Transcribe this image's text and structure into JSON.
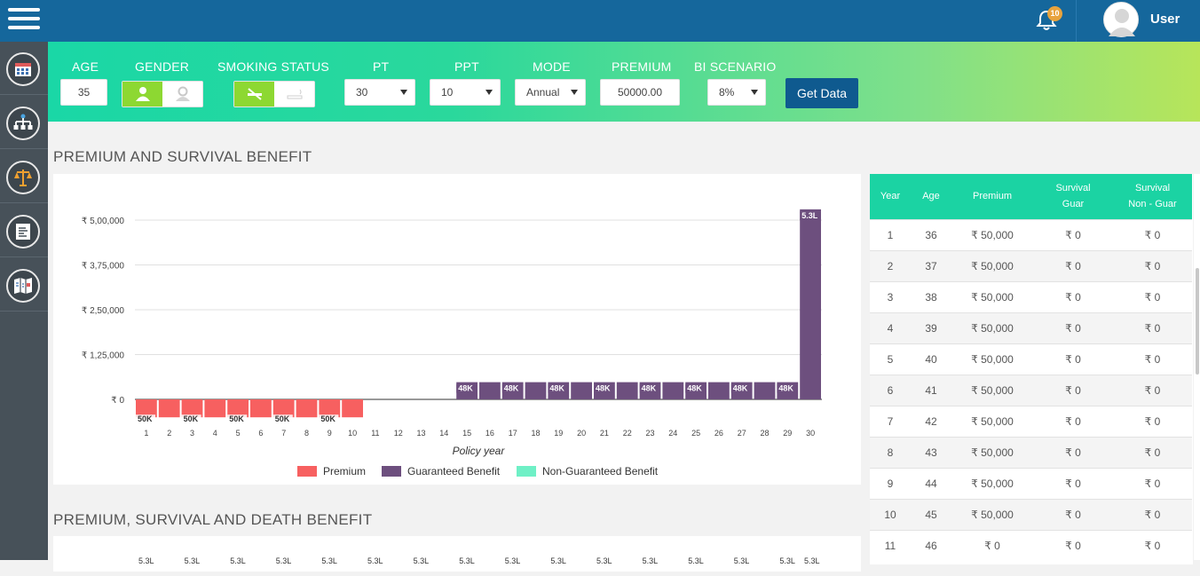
{
  "header": {
    "notification_count": "10",
    "user_name": "User"
  },
  "filters": {
    "age_label": "AGE",
    "age_value": "35",
    "gender_label": "GENDER",
    "smoking_label": "SMOKING  STATUS",
    "pt_label": "PT",
    "pt_value": "30",
    "ppt_label": "PPT",
    "ppt_value": "10",
    "mode_label": "MODE",
    "mode_value": "Annual",
    "premium_label": "PREMIUM",
    "premium_value": "50000.00",
    "bi_label": "BI  SCENARIO",
    "bi_value": "8%",
    "get_data_label": "Get Data"
  },
  "sections": {
    "chart1_title": "PREMIUM AND SURVIVAL BENEFIT",
    "chart2_title": "PREMIUM, SURVIVAL AND DEATH BENEFIT"
  },
  "chart_data": {
    "type": "bar",
    "x": [
      1,
      2,
      3,
      4,
      5,
      6,
      7,
      8,
      9,
      10,
      11,
      12,
      13,
      14,
      15,
      16,
      17,
      18,
      19,
      20,
      21,
      22,
      23,
      24,
      25,
      26,
      27,
      28,
      29,
      30
    ],
    "xlabel": "Policy year",
    "ylabel": "",
    "ylim": [
      -30000,
      530000
    ],
    "yticks": [
      {
        "value": 0,
        "label": "₹ 0"
      },
      {
        "value": 125000,
        "label": "₹ 1,25,000"
      },
      {
        "value": 250000,
        "label": "₹ 2,50,000"
      },
      {
        "value": 375000,
        "label": "₹ 3,75,000"
      },
      {
        "value": 500000,
        "label": "₹ 5,00,000"
      }
    ],
    "legend_position": "bottom",
    "series": [
      {
        "name": "Premium",
        "color": "#f76060",
        "values": [
          -50000,
          -50000,
          -50000,
          -50000,
          -50000,
          -50000,
          -50000,
          -50000,
          -50000,
          -50000,
          0,
          0,
          0,
          0,
          0,
          0,
          0,
          0,
          0,
          0,
          0,
          0,
          0,
          0,
          0,
          0,
          0,
          0,
          0,
          0
        ],
        "labels": [
          "50K",
          "",
          "50K",
          "",
          "50K",
          "",
          "50K",
          "",
          "50K",
          "",
          "",
          "",
          "",
          "",
          "",
          "",
          "",
          "",
          "",
          "",
          "",
          "",
          "",
          "",
          "",
          "",
          "",
          "",
          "",
          ""
        ]
      },
      {
        "name": "Guaranteed Benefit",
        "color": "#6d4f7e",
        "values": [
          0,
          0,
          0,
          0,
          0,
          0,
          0,
          0,
          0,
          0,
          0,
          0,
          0,
          0,
          48000,
          48000,
          48000,
          48000,
          48000,
          48000,
          48000,
          48000,
          48000,
          48000,
          48000,
          48000,
          48000,
          48000,
          48000,
          530000
        ],
        "labels": [
          "",
          "",
          "",
          "",
          "",
          "",
          "",
          "",
          "",
          "",
          "",
          "",
          "",
          "",
          "48K",
          "",
          "48K",
          "",
          "48K",
          "",
          "48K",
          "",
          "48K",
          "",
          "48K",
          "",
          "48K",
          "",
          "48K",
          "5.3L"
        ]
      },
      {
        "name": "Non-Guaranteed Benefit",
        "color": "#6ff0c6",
        "values": [
          0,
          0,
          0,
          0,
          0,
          0,
          0,
          0,
          0,
          0,
          0,
          0,
          0,
          0,
          0,
          0,
          0,
          0,
          0,
          0,
          0,
          0,
          0,
          0,
          0,
          0,
          0,
          0,
          0,
          0
        ],
        "labels": []
      }
    ]
  },
  "chart2_top_labels": [
    "5.3L",
    "5.3L",
    "5.3L",
    "5.3L",
    "5.3L",
    "5.3L",
    "5.3L",
    "5.3L",
    "5.3L",
    "5.3L",
    "5.3L",
    "5.3L",
    "5.3L",
    "5.3L",
    "5.3L",
    "5.3L"
  ],
  "table": {
    "headers": [
      "Year",
      "Age",
      "Premium",
      "Survival\nGuar",
      "Survival\nNon - Guar"
    ],
    "rows": [
      [
        "1",
        "36",
        "₹ 50,000",
        "₹ 0",
        "₹ 0"
      ],
      [
        "2",
        "37",
        "₹ 50,000",
        "₹ 0",
        "₹ 0"
      ],
      [
        "3",
        "38",
        "₹ 50,000",
        "₹ 0",
        "₹ 0"
      ],
      [
        "4",
        "39",
        "₹ 50,000",
        "₹ 0",
        "₹ 0"
      ],
      [
        "5",
        "40",
        "₹ 50,000",
        "₹ 0",
        "₹ 0"
      ],
      [
        "6",
        "41",
        "₹ 50,000",
        "₹ 0",
        "₹ 0"
      ],
      [
        "7",
        "42",
        "₹ 50,000",
        "₹ 0",
        "₹ 0"
      ],
      [
        "8",
        "43",
        "₹ 50,000",
        "₹ 0",
        "₹ 0"
      ],
      [
        "9",
        "44",
        "₹ 50,000",
        "₹ 0",
        "₹ 0"
      ],
      [
        "10",
        "45",
        "₹ 50,000",
        "₹ 0",
        "₹ 0"
      ],
      [
        "11",
        "46",
        "₹ 0",
        "₹ 0",
        "₹ 0"
      ]
    ]
  }
}
